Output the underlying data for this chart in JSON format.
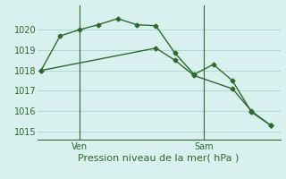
{
  "line1_x": [
    0,
    1,
    2,
    3,
    4,
    5,
    6,
    7,
    8,
    9,
    10,
    11,
    12
  ],
  "line1_y": [
    1018.0,
    1019.7,
    1020.0,
    1020.25,
    1020.55,
    1020.25,
    1020.2,
    1018.85,
    1017.8,
    1018.3,
    1017.5,
    1015.95,
    1015.3
  ],
  "line2_x": [
    0,
    6,
    7,
    8,
    10,
    11,
    12
  ],
  "line2_y": [
    1018.0,
    1019.1,
    1018.5,
    1017.75,
    1017.1,
    1016.0,
    1015.3
  ],
  "ven_x": 2.0,
  "sam_x": 8.5,
  "ven_label": "Ven",
  "sam_label": "Sam",
  "color": "#2d6a2d",
  "bg_color": "#d8f0ee",
  "grid_color": "#b0d8d4",
  "ylim": [
    1014.6,
    1021.2
  ],
  "yticks": [
    1015,
    1016,
    1017,
    1018,
    1019,
    1020
  ],
  "xlim": [
    -0.2,
    12.5
  ],
  "xlabel": "Pression niveau de la mer( hPa )",
  "marker": "D",
  "markersize": 2.5,
  "linewidth": 1.0,
  "xlabel_fontsize": 8,
  "ytick_fontsize": 7
}
